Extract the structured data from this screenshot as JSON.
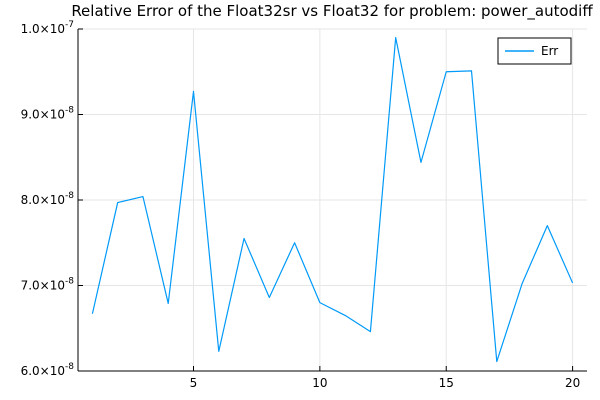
{
  "chart_data": {
    "type": "line",
    "title": "Relative Error of the Float32sr vs Float32 for problem: power_autodiff",
    "xlabel": "",
    "ylabel": "",
    "xlim": [
      0.43,
      20.57
    ],
    "ylim": [
      6e-08,
      1e-07
    ],
    "x_ticks": [
      5,
      10,
      15,
      20
    ],
    "x_tick_labels": [
      "5",
      "10",
      "15",
      "20"
    ],
    "y_ticks": [
      6e-08,
      7e-08,
      8e-08,
      9e-08,
      1e-07
    ],
    "y_tick_labels": [
      {
        "mantissa": "6.0",
        "exp": "-8"
      },
      {
        "mantissa": "7.0",
        "exp": "-8"
      },
      {
        "mantissa": "8.0",
        "exp": "-8"
      },
      {
        "mantissa": "9.0",
        "exp": "-8"
      },
      {
        "mantissa": "1.0",
        "exp": "-7"
      }
    ],
    "grid": true,
    "legend_position": "top-right",
    "series": [
      {
        "name": "Err",
        "color": "#009af9",
        "x": [
          1,
          2,
          3,
          4,
          5,
          6,
          7,
          8,
          9,
          10,
          11,
          12,
          13,
          14,
          15,
          16,
          17,
          18,
          19,
          20
        ],
        "y": [
          6.67e-08,
          7.97e-08,
          8.04e-08,
          6.79e-08,
          9.27e-08,
          6.23e-08,
          7.55e-08,
          6.86e-08,
          7.5e-08,
          6.8e-08,
          6.65e-08,
          6.46e-08,
          9.9e-08,
          8.44e-08,
          9.5e-08,
          9.51e-08,
          6.11e-08,
          7.02e-08,
          7.7e-08,
          7.03e-08
        ]
      }
    ]
  }
}
